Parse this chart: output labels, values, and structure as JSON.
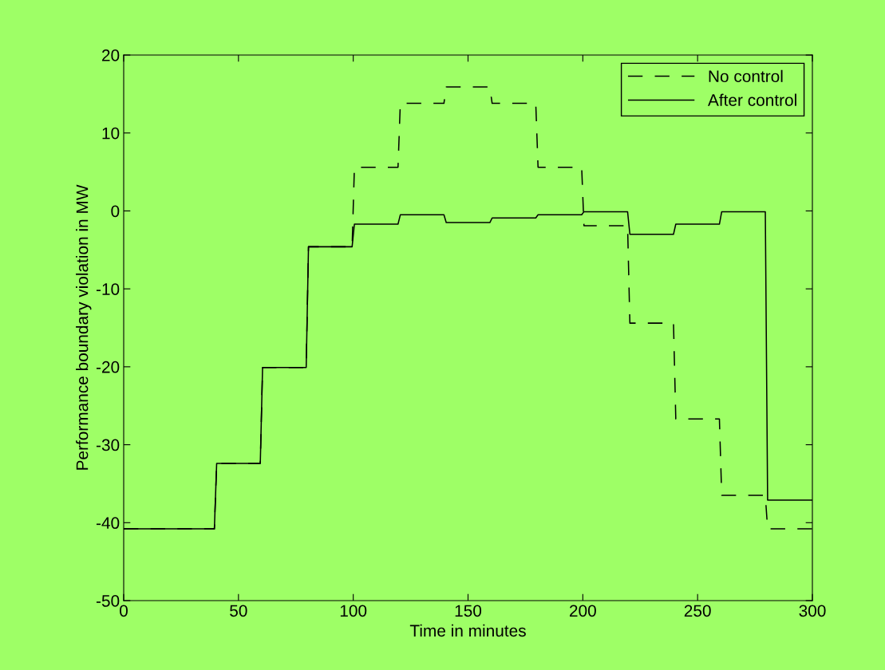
{
  "chart_data": {
    "type": "line",
    "xlabel": "Time in minutes",
    "ylabel": "Performance boundary violation in MW",
    "xlim": [
      0,
      300
    ],
    "xticks": [
      0,
      50,
      100,
      150,
      200,
      250,
      300
    ],
    "ylim": [
      -50,
      20
    ],
    "yticks": [
      -50,
      -40,
      -30,
      -20,
      -10,
      0,
      10,
      20
    ],
    "grid": false,
    "legend": "top right",
    "series": [
      {
        "name": "No control",
        "color": "#000000",
        "line_style": "dashed",
        "x": [
          0,
          39.5,
          40.5,
          59.5,
          60.5,
          79.5,
          80.5,
          99.5,
          100.5,
          119.5,
          120.5,
          139.5,
          140.5,
          159.5,
          160.5,
          179.5,
          180.5,
          199.5,
          200.5,
          219.5,
          220.5,
          239.5,
          240.5,
          259.5,
          260.5,
          279.5,
          280.5,
          300
        ],
        "values": [
          -40.8,
          -40.8,
          -32.4,
          -32.4,
          -20.1,
          -20.1,
          -4.6,
          -4.6,
          5.6,
          5.6,
          13.8,
          13.8,
          15.9,
          15.9,
          13.8,
          13.8,
          5.6,
          5.6,
          -1.9,
          -1.9,
          -14.4,
          -14.4,
          -26.7,
          -26.7,
          -36.5,
          -36.5,
          -40.8,
          -40.8
        ]
      },
      {
        "name": "After control",
        "color": "#000000",
        "line_style": "solid",
        "x": [
          0,
          39.5,
          40.5,
          59.5,
          60.5,
          79.5,
          80.5,
          99.5,
          100.5,
          119.5,
          120.5,
          139.5,
          140.5,
          159.5,
          160.5,
          179.5,
          180.5,
          199.5,
          200.5,
          219.5,
          220.5,
          239.5,
          240.5,
          259.5,
          260.5,
          279.5,
          280.5,
          300
        ],
        "values": [
          -40.8,
          -40.8,
          -32.4,
          -32.4,
          -20.1,
          -20.1,
          -4.6,
          -4.6,
          -1.7,
          -1.7,
          -0.5,
          -0.5,
          -1.5,
          -1.5,
          -0.9,
          -0.9,
          -0.5,
          -0.5,
          -0.1,
          -0.1,
          -3.0,
          -3.0,
          -1.7,
          -1.7,
          -0.1,
          -0.1,
          -37.1,
          -37.1
        ]
      }
    ]
  }
}
